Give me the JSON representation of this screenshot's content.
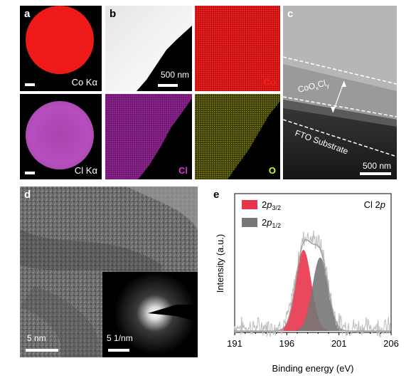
{
  "panel_a": {
    "label": "a",
    "map_top": "Co Kα",
    "map_bottom": "Cl Kα",
    "color_top": "#ee1a1a",
    "color_bottom": "#b347b8"
  },
  "panel_b": {
    "label": "b",
    "scale_bar": "500 nm",
    "maps": [
      "Co",
      "Cl",
      "O"
    ],
    "colors": {
      "Co": "#e31818",
      "Cl": "#c826c8",
      "O": "#e8e810"
    }
  },
  "panel_c": {
    "label": "c",
    "layer_top": "CoO",
    "layer_top_sub1": "x",
    "layer_top_mid": "Cl",
    "layer_top_sub2": "y",
    "layer_bottom": "FTO Substrate",
    "scale_bar": "500 nm"
  },
  "panel_d": {
    "label": "d",
    "scale_bar_main": "5 nm",
    "scale_bar_inset": "5 1/nm"
  },
  "panel_e": {
    "label": "e",
    "annotation": "Cl 2p",
    "annotation_main": "Cl 2",
    "annotation_italic": "p"
  },
  "chart_data": {
    "type": "area",
    "title": "",
    "xlabel": "Binding energy (eV)",
    "ylabel": "Intensity (a.u.)",
    "xlim": [
      191,
      206
    ],
    "x_ticks": [
      "191",
      "196",
      "201",
      "206"
    ],
    "legend_placement": "top-left",
    "series": [
      {
        "name": "2p3/2",
        "name_main": "2",
        "name_italic": "p",
        "name_sub": "3/2",
        "color": "#e8344a",
        "center": 197.6,
        "height": 0.95
      },
      {
        "name": "2p1/2",
        "name_main": "2",
        "name_italic": "p",
        "name_sub": "1/2",
        "color": "#777777",
        "center": 199.2,
        "height": 0.86
      }
    ]
  }
}
